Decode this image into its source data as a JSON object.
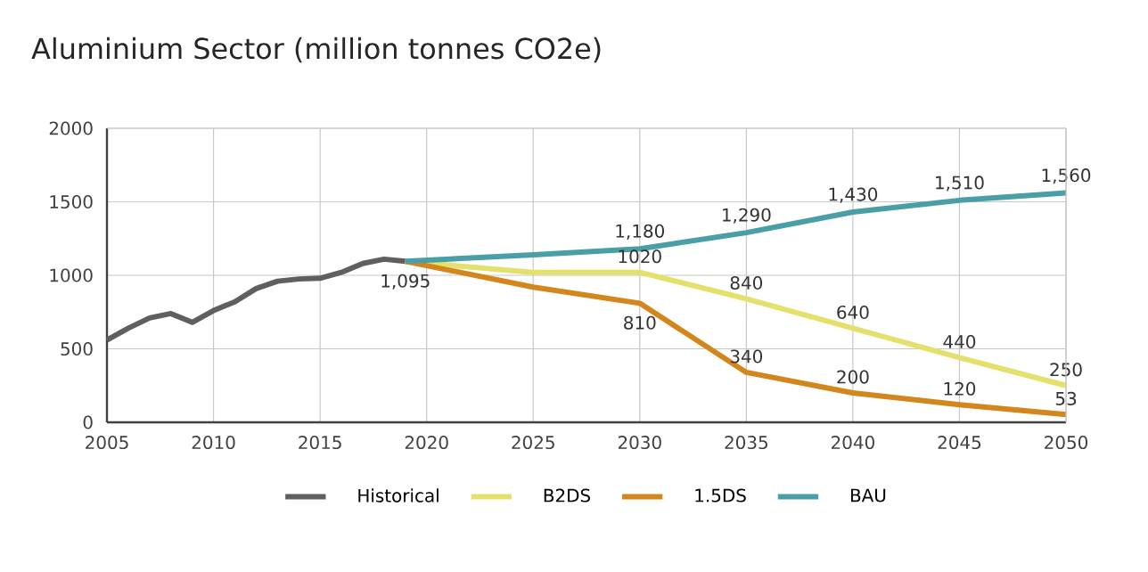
{
  "chart_data": {
    "type": "line",
    "title": "Aluminium Sector (million tonnes CO2e)",
    "xlim": [
      2005,
      2050
    ],
    "ylim": [
      0,
      2000
    ],
    "xticks": [
      2005,
      2010,
      2015,
      2020,
      2025,
      2030,
      2035,
      2040,
      2045,
      2050
    ],
    "yticks": [
      0,
      500,
      1000,
      1500,
      2000
    ],
    "grid": true,
    "legend": "bottom",
    "marker": "none",
    "line_style": "solid",
    "series": [
      {
        "name": "Historical",
        "color": "#5f5f5f",
        "x": [
          2005,
          2006,
          2007,
          2008,
          2009,
          2010,
          2011,
          2012,
          2013,
          2014,
          2015,
          2016,
          2017,
          2018,
          2019
        ],
        "values": [
          560,
          640,
          710,
          740,
          680,
          760,
          820,
          910,
          960,
          975,
          980,
          1020,
          1080,
          1110,
          1095
        ],
        "value_labels": [
          null,
          null,
          null,
          null,
          null,
          null,
          null,
          null,
          null,
          null,
          null,
          null,
          null,
          null,
          "1,095"
        ]
      },
      {
        "name": "B2DS",
        "color": "#e3e16c",
        "x": [
          2019,
          2025,
          2030,
          2035,
          2040,
          2045,
          2050
        ],
        "values": [
          1095,
          1020,
          1020,
          840,
          640,
          440,
          250
        ],
        "value_labels": [
          null,
          null,
          "1020",
          "840",
          "640",
          "440",
          "250"
        ]
      },
      {
        "name": "1.5DS",
        "color": "#d3861c",
        "x": [
          2019,
          2025,
          2030,
          2035,
          2040,
          2045,
          2050
        ],
        "values": [
          1095,
          920,
          810,
          340,
          200,
          120,
          53
        ],
        "value_labels": [
          null,
          null,
          "810",
          "340",
          "200",
          "120",
          "53"
        ]
      },
      {
        "name": "BAU",
        "color": "#4a9ea6",
        "x": [
          2019,
          2025,
          2030,
          2035,
          2040,
          2045,
          2050
        ],
        "values": [
          1095,
          1140,
          1180,
          1290,
          1430,
          1510,
          1560
        ],
        "value_labels": [
          null,
          null,
          "1,180",
          "1,290",
          "1,430",
          "1,510",
          "1,560"
        ]
      }
    ]
  }
}
